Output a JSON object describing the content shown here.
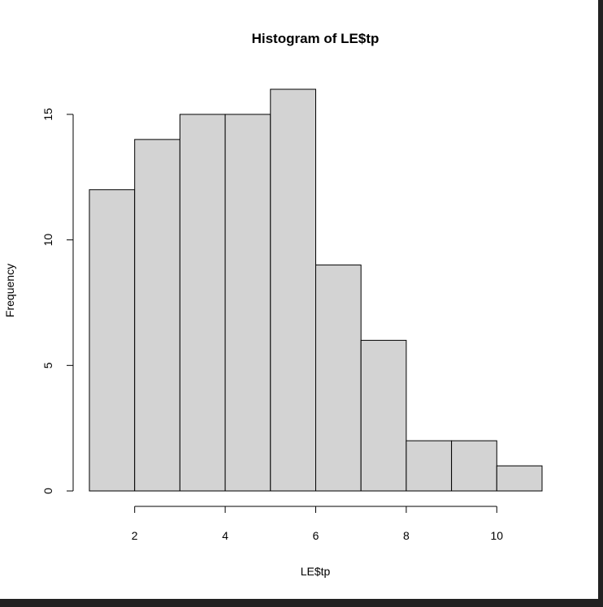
{
  "chart_data": {
    "type": "bar",
    "title": "Histogram of LE$tp",
    "xlabel": "LE$tp",
    "ylabel": "Frequency",
    "bins": [
      {
        "start": 1,
        "end": 2,
        "count": 12
      },
      {
        "start": 2,
        "end": 3,
        "count": 14
      },
      {
        "start": 3,
        "end": 4,
        "count": 15
      },
      {
        "start": 4,
        "end": 5,
        "count": 15
      },
      {
        "start": 5,
        "end": 6,
        "count": 16
      },
      {
        "start": 6,
        "end": 7,
        "count": 9
      },
      {
        "start": 7,
        "end": 8,
        "count": 6
      },
      {
        "start": 8,
        "end": 9,
        "count": 2
      },
      {
        "start": 9,
        "end": 10,
        "count": 2
      },
      {
        "start": 10,
        "end": 11,
        "count": 1
      }
    ],
    "xlim": [
      1,
      11
    ],
    "ylim": [
      0,
      16
    ],
    "x_ticks": [
      2,
      4,
      6,
      8,
      10
    ],
    "y_ticks": [
      0,
      5,
      10,
      15
    ],
    "grid": false,
    "bar_fill": "#d3d3d3",
    "bar_stroke": "#000000"
  }
}
